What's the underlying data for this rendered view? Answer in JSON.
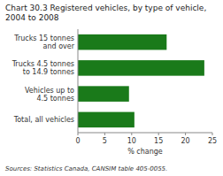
{
  "chart_data": {
    "type": "bar",
    "orientation": "horizontal",
    "title": "Chart 30.3 Registered vehicles, by type of vehicle, 2004 to 2008",
    "categories": [
      "Total, all vehicles",
      "Vehicles up to\n4.5 tonnes",
      "Trucks 4.5 tonnes\nto 14.9 tonnes",
      "Trucks 15 tonnes\nand over"
    ],
    "values": [
      10.5,
      9.5,
      23.5,
      16.5
    ],
    "color": "#1a7a1a",
    "xlabel": "% change",
    "xlim": [
      0,
      25
    ],
    "xticks": [
      0,
      5,
      10,
      15,
      20,
      25
    ],
    "source": "Sources: Statistics Canada, CANSIM table 405-0055."
  }
}
